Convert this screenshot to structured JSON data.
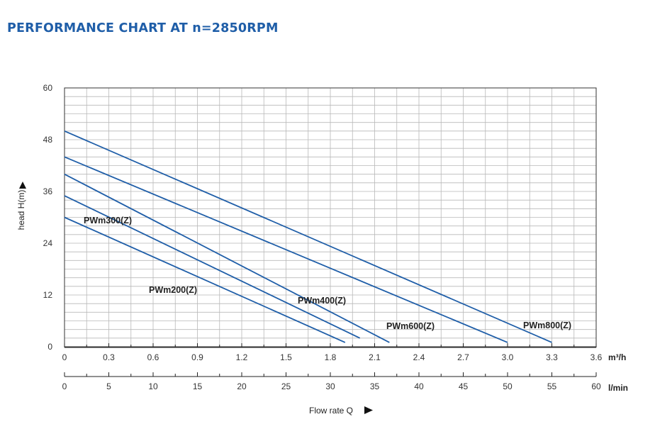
{
  "title": "PERFORMANCE CHART AT n=2850RPM",
  "chart_data": {
    "type": "line",
    "ylabel": "head H(m)",
    "xlabel": "Flow rate Q",
    "xunit_primary": "m³/h",
    "xunit_secondary": "l/min",
    "ylim": [
      0,
      60
    ],
    "xlim": [
      0,
      3.6
    ],
    "yticks": [
      "0",
      "12",
      "24",
      "36",
      "48",
      "60"
    ],
    "xticks_primary": [
      "0",
      "0.3",
      "0.6",
      "0.9",
      "1.2",
      "1.5",
      "1.8",
      "2.1",
      "2.4",
      "2.7",
      "3.0",
      "3.3",
      "3.6"
    ],
    "xticks_secondary": [
      "0",
      "5",
      "10",
      "15",
      "20",
      "25",
      "30",
      "35",
      "40",
      "45",
      "50",
      "55",
      "60"
    ],
    "grid": true,
    "line_color": "#1f5ea8",
    "series": [
      {
        "name": "PWm200(Z)",
        "x": [
          0,
          1.9
        ],
        "y": [
          30,
          1
        ]
      },
      {
        "name": "PWm300(Z)",
        "x": [
          0,
          2.0
        ],
        "y": [
          35,
          2
        ]
      },
      {
        "name": "PWm400(Z)",
        "x": [
          0,
          2.2
        ],
        "y": [
          40,
          1
        ]
      },
      {
        "name": "PWm600(Z)",
        "x": [
          0,
          3.0
        ],
        "y": [
          44,
          1
        ]
      },
      {
        "name": "PWm800(Z)",
        "x": [
          0,
          3.3
        ],
        "y": [
          50,
          1
        ]
      }
    ]
  }
}
